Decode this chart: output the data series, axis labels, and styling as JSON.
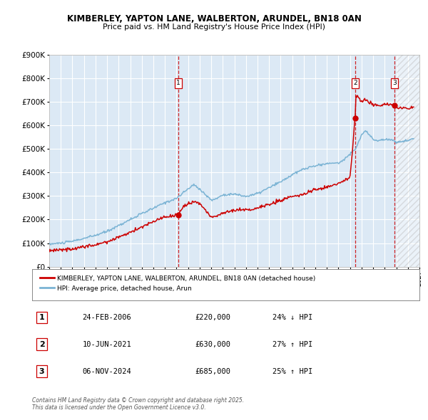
{
  "title_line1": "KIMBERLEY, YAPTON LANE, WALBERTON, ARUNDEL, BN18 0AN",
  "title_line2": "Price paid vs. HM Land Registry's House Price Index (HPI)",
  "background_color": "#ffffff",
  "plot_bg_color": "#dce9f5",
  "grid_color": "#ffffff",
  "sale_dates": [
    2006.15,
    2021.44,
    2024.85
  ],
  "sale_prices": [
    220000,
    630000,
    685000
  ],
  "sale_labels": [
    "1",
    "2",
    "3"
  ],
  "vline_color": "#cc0000",
  "hpi_line_color": "#7ab3d4",
  "price_line_color": "#cc0000",
  "legend_label_price": "KIMBERLEY, YAPTON LANE, WALBERTON, ARUNDEL, BN18 0AN (detached house)",
  "legend_label_hpi": "HPI: Average price, detached house, Arun",
  "footer_text": "Contains HM Land Registry data © Crown copyright and database right 2025.\nThis data is licensed under the Open Government Licence v3.0.",
  "table_entries": [
    {
      "num": "1",
      "date": "24-FEB-2006",
      "price": "£220,000",
      "pct": "24% ↓ HPI"
    },
    {
      "num": "2",
      "date": "10-JUN-2021",
      "price": "£630,000",
      "pct": "27% ↑ HPI"
    },
    {
      "num": "3",
      "date": "06-NOV-2024",
      "price": "£685,000",
      "pct": "25% ↑ HPI"
    }
  ],
  "xmin": 1995,
  "xmax": 2027,
  "ymin": 0,
  "ymax": 900000,
  "hatch_start": 2025.0,
  "hatch_end": 2027.0,
  "hpi_anchors_x": [
    1995,
    1996,
    1997,
    1998,
    1999,
    2000,
    2001,
    2002,
    2003,
    2004,
    2005,
    2006,
    2007,
    2007.5,
    2008,
    2009,
    2009.5,
    2010,
    2011,
    2012,
    2013,
    2014,
    2015,
    2016,
    2017,
    2018,
    2019,
    2020,
    2020.5,
    2021,
    2021.5,
    2022,
    2022.3,
    2022.8,
    2023,
    2023.5,
    2024,
    2024.5,
    2025,
    2025.5,
    2026,
    2026.5
  ],
  "hpi_anchors_y": [
    96000,
    100000,
    108000,
    120000,
    133000,
    150000,
    175000,
    200000,
    225000,
    248000,
    272000,
    290000,
    330000,
    348000,
    330000,
    282000,
    290000,
    305000,
    308000,
    298000,
    310000,
    335000,
    360000,
    390000,
    415000,
    428000,
    438000,
    440000,
    455000,
    480000,
    500000,
    560000,
    575000,
    555000,
    540000,
    535000,
    540000,
    540000,
    528000,
    532000,
    535000,
    545000
  ],
  "price_anchors_x": [
    1995,
    1996,
    1997,
    1998,
    1999,
    2000,
    2001,
    2002,
    2003,
    2004,
    2005,
    2006.15,
    2006.5,
    2007,
    2007.5,
    2008,
    2008.5,
    2009,
    2009.5,
    2010,
    2011,
    2012,
    2013,
    2014,
    2015,
    2016,
    2017,
    2018,
    2019,
    2020,
    2020.5,
    2021.0,
    2021.44,
    2021.5,
    2021.7,
    2022,
    2022.3,
    2022.8,
    2023,
    2023.5,
    2024,
    2024.85,
    2025,
    2025.5,
    2026,
    2026.5
  ],
  "price_anchors_y": [
    68000,
    72000,
    76000,
    84000,
    95000,
    106000,
    125000,
    145000,
    168000,
    192000,
    210000,
    220000,
    248000,
    268000,
    275000,
    270000,
    240000,
    210000,
    218000,
    228000,
    240000,
    240000,
    248000,
    265000,
    280000,
    298000,
    310000,
    328000,
    338000,
    355000,
    368000,
    378000,
    630000,
    725000,
    720000,
    700000,
    710000,
    695000,
    688000,
    685000,
    688000,
    685000,
    675000,
    672000,
    670000,
    678000
  ]
}
